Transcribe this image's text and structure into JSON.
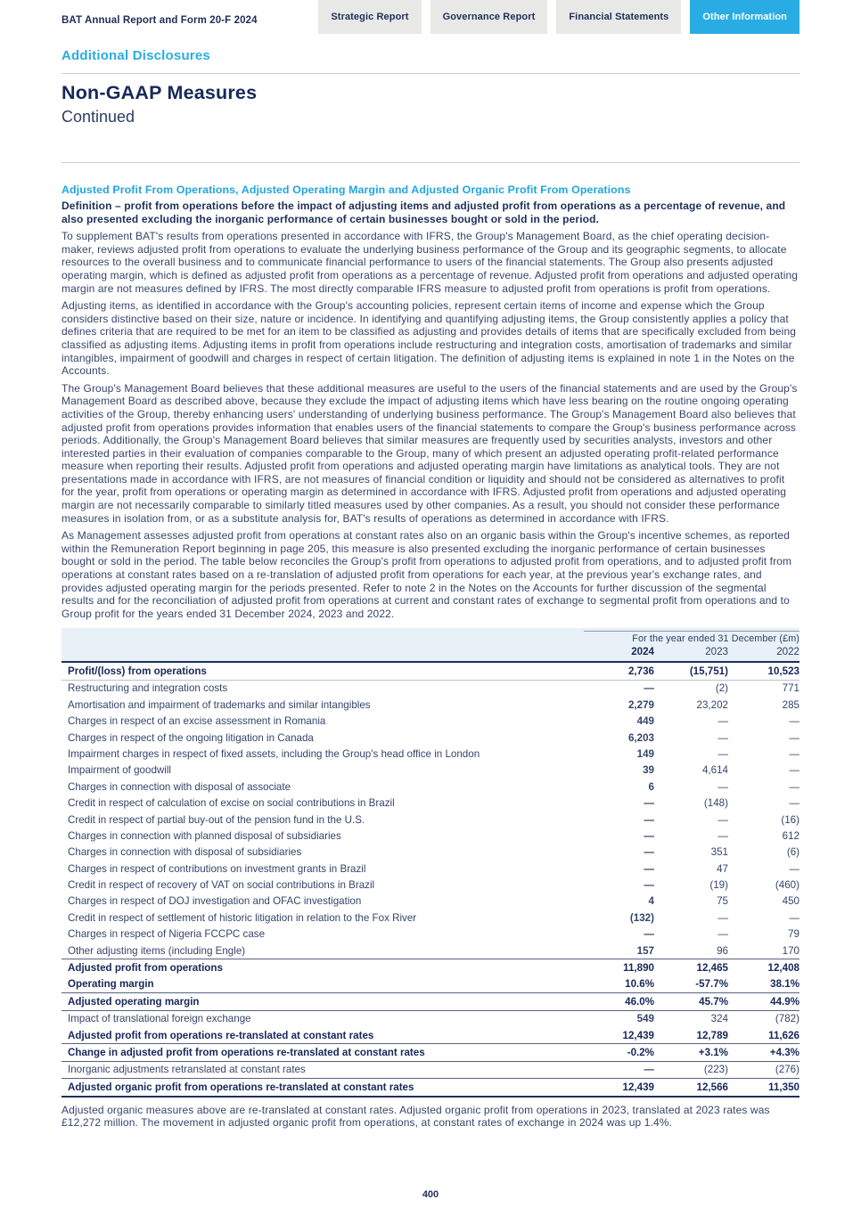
{
  "colors": {
    "accent_cyan": "#29ace3",
    "navy_heading": "#17285a",
    "body_text": "#35456a",
    "tab_gray": "#e8e8e7",
    "table_header_bg": "#e9f1f8"
  },
  "header": {
    "report_title": "BAT Annual Report and Form 20-F 2024",
    "tabs": [
      {
        "label": "Strategic Report",
        "active": false
      },
      {
        "label": "Governance Report",
        "active": false
      },
      {
        "label": "Financial Statements",
        "active": false
      },
      {
        "label": "Other Information",
        "active": true
      }
    ]
  },
  "page": {
    "section_label": "Additional Disclosures",
    "title": "Non-GAAP Measures",
    "subtitle": "Continued",
    "page_number": "400"
  },
  "article": {
    "heading": "Adjusted Profit From Operations, Adjusted Operating Margin and Adjusted Organic Profit From Operations",
    "definition": "Definition – profit from operations before the impact of adjusting items and adjusted profit from operations as a percentage of revenue, and also presented excluding the inorganic performance of certain businesses bought or sold in the period.",
    "paragraphs": [
      "To supplement BAT's results from operations presented in accordance with IFRS, the Group's Management Board, as the chief operating decision-maker, reviews adjusted profit from operations to evaluate the underlying business performance of the Group and its geographic segments, to allocate resources to the overall business and to communicate financial performance to users of the financial statements. The Group also presents adjusted operating margin, which is defined as adjusted profit from operations as a percentage of revenue. Adjusted profit from operations and adjusted operating margin are not measures defined by IFRS. The most directly comparable IFRS measure to adjusted profit from operations is profit from operations.",
      "Adjusting items, as identified in accordance with the Group's accounting policies, represent certain items of income and expense which the Group considers distinctive based on their size, nature or incidence. In identifying and quantifying adjusting items, the Group consistently applies a policy that defines criteria that are required to be met for an item to be classified as adjusting and provides details of items that are specifically excluded from being classified as adjusting items. Adjusting items in profit from operations include restructuring and integration costs, amortisation of trademarks and similar intangibles, impairment of goodwill and charges in respect of certain litigation. The definition of adjusting items is explained in note 1 in the Notes on the Accounts.",
      "The Group's Management Board believes that these additional measures are useful to the users of the financial statements and are used by the Group's Management Board as described above, because they exclude the impact of adjusting items which have less bearing on the routine ongoing operating activities of the Group, thereby enhancing users' understanding of underlying business performance. The Group's Management Board also believes that adjusted profit from operations provides information that enables users of the financial statements to compare the Group's business performance across periods. Additionally, the Group's Management Board believes that similar measures are frequently used by securities analysts, investors and other interested parties in their evaluation of companies comparable to the Group, many of which present an adjusted operating profit-related performance measure when reporting their results. Adjusted profit from operations and adjusted operating margin have limitations as analytical tools. They are not presentations made in accordance with IFRS, are not measures of financial condition or liquidity and should not be considered as alternatives to profit for the year, profit from operations or operating margin as determined in accordance with IFRS. Adjusted profit from operations and adjusted operating margin are not necessarily comparable to similarly titled measures used by other companies. As a result, you should not consider these performance measures in isolation from, or as a substitute analysis for, BAT's results of operations as determined in accordance with IFRS.",
      "As Management assesses adjusted profit from operations at constant rates also on an organic basis within the Group's incentive schemes, as reported within the Remuneration Report beginning in page 205, this measure is also presented excluding the inorganic performance of certain businesses bought or sold in the period. The table below reconciles the Group's profit from operations to adjusted profit from operations, and to adjusted profit from operations at constant rates based on a re-translation of adjusted profit from operations for each year, at the previous year's exchange rates, and provides adjusted operating margin for the periods presented. Refer to note 2 in the Notes on the Accounts for further discussion of the segmental results and for the reconciliation of adjusted profit from operations at current and constant rates of exchange to segmental profit from operations and to Group profit for the years ended 31 December 2024, 2023 and 2022."
    ],
    "footnote": "Adjusted organic measures above are re-translated at constant rates. Adjusted organic profit from operations in 2023, translated at 2023 rates was £12,272 million. The movement in adjusted organic profit from operations, at constant rates of exchange in 2024 was up 1.4%."
  },
  "table": {
    "caption": "For the year ended 31 December (£m)",
    "columns": [
      "2024",
      "2023",
      "2022"
    ],
    "rows": [
      {
        "label": "Profit/(loss) from operations",
        "values": [
          "2,736",
          "(15,751)",
          "10,523"
        ],
        "bold": true,
        "rule_below": true
      },
      {
        "label": "Restructuring and integration costs",
        "values": [
          "—",
          "(2)",
          "771"
        ],
        "bold": false
      },
      {
        "label": "Amortisation and impairment of trademarks and similar intangibles",
        "values": [
          "2,279",
          "23,202",
          "285"
        ],
        "bold": false
      },
      {
        "label": "Charges in respect of an excise assessment in Romania",
        "values": [
          "449",
          "—",
          "—"
        ],
        "bold": false
      },
      {
        "label": "Charges in respect of the ongoing litigation in Canada",
        "values": [
          "6,203",
          "—",
          "—"
        ],
        "bold": false
      },
      {
        "label": "Impairment charges in respect of fixed assets, including the Group's head office in London",
        "values": [
          "149",
          "—",
          "—"
        ],
        "bold": false
      },
      {
        "label": "Impairment of goodwill",
        "values": [
          "39",
          "4,614",
          "—"
        ],
        "bold": false
      },
      {
        "label": "Charges in connection with disposal of associate",
        "values": [
          "6",
          "—",
          "—"
        ],
        "bold": false
      },
      {
        "label": "Credit in respect of calculation of excise on social contributions in Brazil",
        "values": [
          "—",
          "(148)",
          "—"
        ],
        "bold": false
      },
      {
        "label": "Credit in respect of partial buy-out of the pension fund in the U.S.",
        "values": [
          "—",
          "—",
          "(16)"
        ],
        "bold": false
      },
      {
        "label": "Charges in connection with planned disposal of subsidiaries",
        "values": [
          "—",
          "—",
          "612"
        ],
        "bold": false
      },
      {
        "label": "Charges in connection with disposal of subsidiaries",
        "values": [
          "—",
          "351",
          "(6)"
        ],
        "bold": false
      },
      {
        "label": "Charges in respect of contributions on investment grants in Brazil",
        "values": [
          "—",
          "47",
          "—"
        ],
        "bold": false
      },
      {
        "label": "Credit in respect of recovery of VAT on social contributions in Brazil",
        "values": [
          "—",
          "(19)",
          "(460)"
        ],
        "bold": false
      },
      {
        "label": "Charges in respect of DOJ investigation and OFAC investigation",
        "values": [
          "4",
          "75",
          "450"
        ],
        "bold": false
      },
      {
        "label": "Credit in respect of settlement of historic litigation in relation to the Fox River",
        "values": [
          "(132)",
          "—",
          "—"
        ],
        "bold": false
      },
      {
        "label": "Charges in respect of Nigeria FCCPC case",
        "values": [
          "—",
          "—",
          "79"
        ],
        "bold": false
      },
      {
        "label": "Other adjusting items (including Engle)",
        "values": [
          "157",
          "96",
          "170"
        ],
        "bold": false
      },
      {
        "label": "Adjusted profit from operations",
        "values": [
          "11,890",
          "12,465",
          "12,408"
        ],
        "bold": true,
        "rule_above": true
      },
      {
        "label": "Operating margin",
        "values": [
          "10.6%",
          "-57.7%",
          "38.1%"
        ],
        "bold": true
      },
      {
        "label": "Adjusted operating margin",
        "values": [
          "46.0%",
          "45.7%",
          "44.9%"
        ],
        "bold": true,
        "rule_above": true
      },
      {
        "label": "Impact of translational foreign exchange",
        "values": [
          "549",
          "324",
          "(782)"
        ],
        "bold": false,
        "rule_above": true
      },
      {
        "label": "Adjusted profit from operations re-translated at constant rates",
        "values": [
          "12,439",
          "12,789",
          "11,626"
        ],
        "bold": true
      },
      {
        "label": "Change in adjusted profit from operations re-translated at constant rates",
        "values": [
          "-0.2%",
          "+3.1%",
          "+4.3%"
        ],
        "bold": true,
        "rule_above": true
      },
      {
        "label": "Inorganic adjustments retranslated at constant rates",
        "values": [
          "—",
          "(223)",
          "(276)"
        ],
        "bold": false,
        "rule_above": true
      },
      {
        "label": "Adjusted organic profit from operations re-translated at constant rates",
        "values": [
          "12,439",
          "12,566",
          "11,350"
        ],
        "bold": true,
        "rule_above": true
      }
    ]
  }
}
